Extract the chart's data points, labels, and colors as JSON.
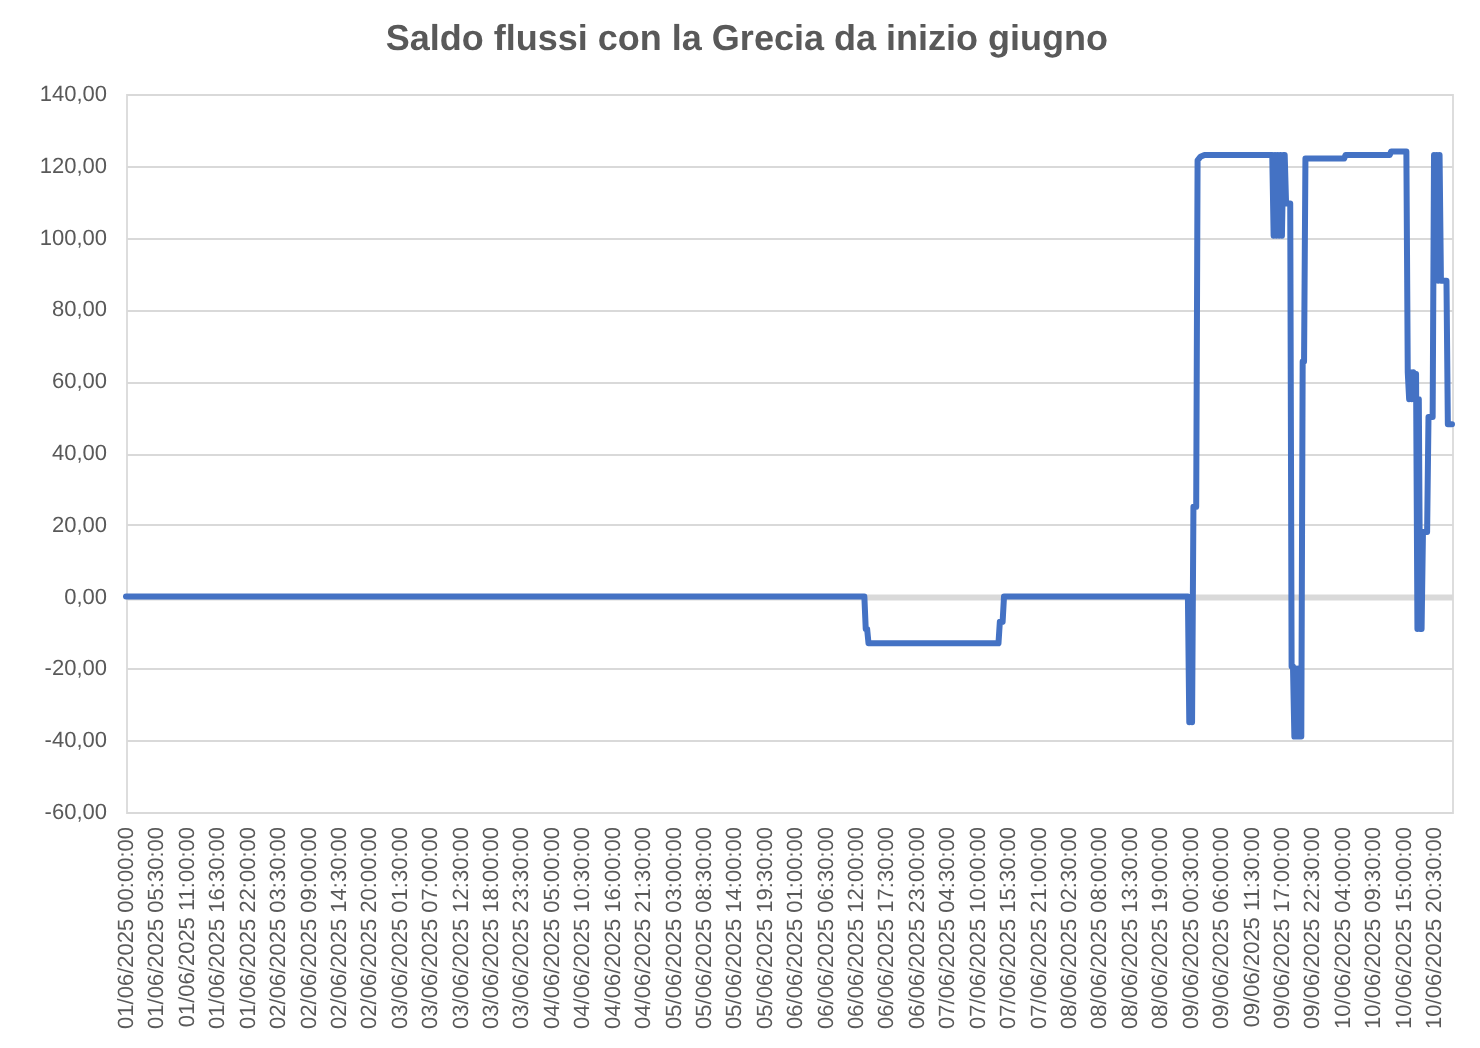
{
  "chart_data": {
    "type": "line",
    "title": "Saldo flussi con la Grecia da inizio giugno",
    "x": [
      "2025-06-01T00:00",
      "2025-06-06T13:30",
      "2025-06-06T13:45",
      "2025-06-06T14:00",
      "2025-06-06T14:15",
      "2025-06-07T13:45",
      "2025-06-07T14:00",
      "2025-06-07T14:30",
      "2025-06-07T14:45",
      "2025-06-09T00:00",
      "2025-06-09T00:15",
      "2025-06-09T00:30",
      "2025-06-09T00:45",
      "2025-06-09T01:00",
      "2025-06-09T01:30",
      "2025-06-09T01:45",
      "2025-06-09T02:15",
      "2025-06-09T03:00",
      "2025-06-09T15:15",
      "2025-06-09T15:30",
      "2025-06-09T15:45",
      "2025-06-09T16:00",
      "2025-06-09T16:15",
      "2025-06-09T16:30",
      "2025-06-09T16:45",
      "2025-06-09T17:00",
      "2025-06-09T17:15",
      "2025-06-09T17:30",
      "2025-06-09T17:45",
      "2025-06-09T18:30",
      "2025-06-09T18:45",
      "2025-06-09T19:00",
      "2025-06-09T19:15",
      "2025-06-09T19:30",
      "2025-06-09T19:45",
      "2025-06-09T20:00",
      "2025-06-09T20:15",
      "2025-06-09T20:30",
      "2025-06-09T20:45",
      "2025-06-09T21:00",
      "2025-06-09T21:15",
      "2025-06-10T04:15",
      "2025-06-10T04:30",
      "2025-06-10T12:30",
      "2025-06-10T12:45",
      "2025-06-10T15:30",
      "2025-06-10T15:45",
      "2025-06-10T16:00",
      "2025-06-10T16:15",
      "2025-06-10T16:30",
      "2025-06-10T16:45",
      "2025-06-10T17:00",
      "2025-06-10T17:15",
      "2025-06-10T17:30",
      "2025-06-10T17:45",
      "2025-06-10T18:00",
      "2025-06-10T18:15",
      "2025-06-10T18:30",
      "2025-06-10T19:15",
      "2025-06-10T19:30",
      "2025-06-10T20:15",
      "2025-06-10T20:30",
      "2025-06-10T20:45",
      "2025-06-10T21:00",
      "2025-06-10T21:15",
      "2025-06-10T21:30",
      "2025-06-10T21:45",
      "2025-06-10T22:45",
      "2025-06-10T23:00",
      "2025-06-10T23:45"
    ],
    "series": [
      {
        "color": "#4472c4",
        "values": [
          0,
          0,
          -9,
          -9,
          -13,
          -13,
          -7,
          -7,
          0,
          0,
          -35,
          -3,
          -35,
          25,
          25,
          121.5,
          122.5,
          123,
          123,
          100.5,
          123,
          100.5,
          123,
          100.5,
          123,
          100.5,
          123,
          123,
          109.5,
          109.5,
          -19.5,
          -19.5,
          -39,
          -20,
          -39,
          -20,
          -39,
          -39,
          65.5,
          65.5,
          122,
          122,
          123,
          123,
          124,
          124,
          62.5,
          55,
          62.5,
          55,
          62.5,
          55,
          62,
          -9,
          55,
          -9,
          -9,
          18,
          18,
          50,
          50,
          123,
          88,
          123,
          88,
          123,
          88,
          88,
          48,
          48
        ]
      }
    ],
    "xlim": [
      "2025-06-01T00:00",
      "2025-06-10T23:45"
    ],
    "xticks": [
      {
        "value": "2025-06-01T00:00",
        "label": "01/06/2025 00:00:00"
      },
      {
        "value": "2025-06-01T05:30",
        "label": "01/06/2025 05:30:00"
      },
      {
        "value": "2025-06-01T11:00",
        "label": "01/06/2025 11:00:00"
      },
      {
        "value": "2025-06-01T16:30",
        "label": "01/06/2025 16:30:00"
      },
      {
        "value": "2025-06-01T22:00",
        "label": "01/06/2025 22:00:00"
      },
      {
        "value": "2025-06-02T03:30",
        "label": "02/06/2025 03:30:00"
      },
      {
        "value": "2025-06-02T09:00",
        "label": "02/06/2025 09:00:00"
      },
      {
        "value": "2025-06-02T14:30",
        "label": "02/06/2025 14:30:00"
      },
      {
        "value": "2025-06-02T20:00",
        "label": "02/06/2025 20:00:00"
      },
      {
        "value": "2025-06-03T01:30",
        "label": "03/06/2025 01:30:00"
      },
      {
        "value": "2025-06-03T07:00",
        "label": "03/06/2025 07:00:00"
      },
      {
        "value": "2025-06-03T12:30",
        "label": "03/06/2025 12:30:00"
      },
      {
        "value": "2025-06-03T18:00",
        "label": "03/06/2025 18:00:00"
      },
      {
        "value": "2025-06-03T23:30",
        "label": "03/06/2025 23:30:00"
      },
      {
        "value": "2025-06-04T05:00",
        "label": "04/06/2025 05:00:00"
      },
      {
        "value": "2025-06-04T10:30",
        "label": "04/06/2025 10:30:00"
      },
      {
        "value": "2025-06-04T16:00",
        "label": "04/06/2025 16:00:00"
      },
      {
        "value": "2025-06-04T21:30",
        "label": "04/06/2025 21:30:00"
      },
      {
        "value": "2025-06-05T03:00",
        "label": "05/06/2025 03:00:00"
      },
      {
        "value": "2025-06-05T08:30",
        "label": "05/06/2025 08:30:00"
      },
      {
        "value": "2025-06-05T14:00",
        "label": "05/06/2025 14:00:00"
      },
      {
        "value": "2025-06-05T19:30",
        "label": "05/06/2025 19:30:00"
      },
      {
        "value": "2025-06-06T01:00",
        "label": "06/06/2025 01:00:00"
      },
      {
        "value": "2025-06-06T06:30",
        "label": "06/06/2025 06:30:00"
      },
      {
        "value": "2025-06-06T12:00",
        "label": "06/06/2025 12:00:00"
      },
      {
        "value": "2025-06-06T17:30",
        "label": "06/06/2025 17:30:00"
      },
      {
        "value": "2025-06-06T23:00",
        "label": "06/06/2025 23:00:00"
      },
      {
        "value": "2025-06-07T04:30",
        "label": "07/06/2025 04:30:00"
      },
      {
        "value": "2025-06-07T10:00",
        "label": "07/06/2025 10:00:00"
      },
      {
        "value": "2025-06-07T15:30",
        "label": "07/06/2025 15:30:00"
      },
      {
        "value": "2025-06-07T21:00",
        "label": "07/06/2025 21:00:00"
      },
      {
        "value": "2025-06-08T02:30",
        "label": "08/06/2025 02:30:00"
      },
      {
        "value": "2025-06-08T08:00",
        "label": "08/06/2025 08:00:00"
      },
      {
        "value": "2025-06-08T13:30",
        "label": "08/06/2025 13:30:00"
      },
      {
        "value": "2025-06-08T19:00",
        "label": "08/06/2025 19:00:00"
      },
      {
        "value": "2025-06-09T00:30",
        "label": "09/06/2025 00:30:00"
      },
      {
        "value": "2025-06-09T06:00",
        "label": "09/06/2025 06:00:00"
      },
      {
        "value": "2025-06-09T11:30",
        "label": "09/06/2025 11:30:00"
      },
      {
        "value": "2025-06-09T17:00",
        "label": "09/06/2025 17:00:00"
      },
      {
        "value": "2025-06-09T22:30",
        "label": "09/06/2025 22:30:00"
      },
      {
        "value": "2025-06-10T04:00",
        "label": "10/06/2025 04:00:00"
      },
      {
        "value": "2025-06-10T09:30",
        "label": "10/06/2025 09:30:00"
      },
      {
        "value": "2025-06-10T15:00",
        "label": "10/06/2025 15:00:00"
      },
      {
        "value": "2025-06-10T20:30",
        "label": "10/06/2025 20:30:00"
      }
    ],
    "ylim": [
      -60,
      140
    ],
    "yticks": [
      {
        "value": -60,
        "label": "-60,00"
      },
      {
        "value": -40,
        "label": "-40,00"
      },
      {
        "value": -20,
        "label": "-20,00"
      },
      {
        "value": 0,
        "label": "0,00"
      },
      {
        "value": 20,
        "label": "20,00"
      },
      {
        "value": 40,
        "label": "40,00"
      },
      {
        "value": 60,
        "label": "60,00"
      },
      {
        "value": 80,
        "label": "80,00"
      },
      {
        "value": 100,
        "label": "100,00"
      },
      {
        "value": 120,
        "label": "120,00"
      },
      {
        "value": 140,
        "label": "140,00"
      }
    ],
    "grid": "y",
    "line_style": "solid"
  }
}
